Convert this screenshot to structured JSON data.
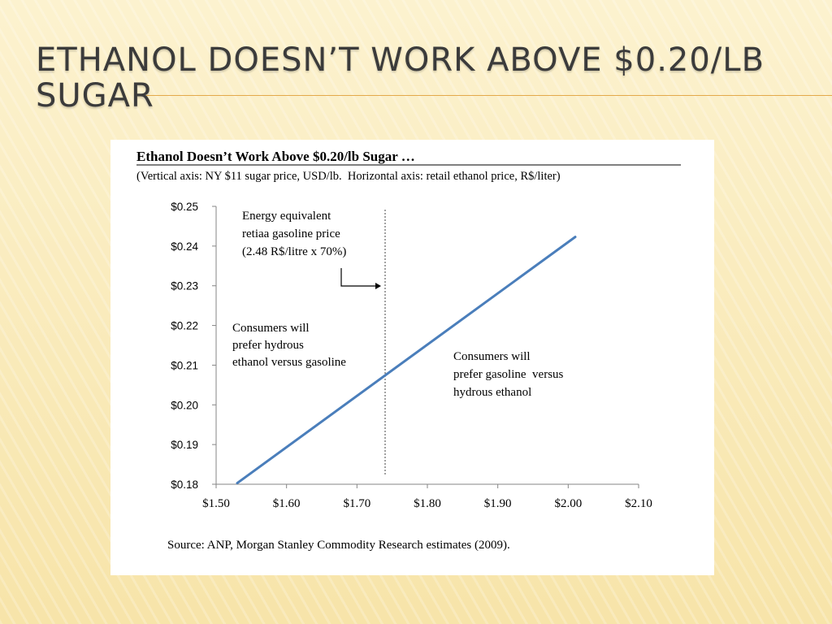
{
  "slide": {
    "title": "Ethanol doesn’t work above $0.20/lb sugar"
  },
  "chart_data": {
    "type": "line",
    "title": "Ethanol Doesn’t Work Above $0.20/lb Sugar …",
    "subtitle": "(Vertical axis: NY $11 sugar price, USD/lb.  Horizontal axis: retail ethanol price, R$/liter)",
    "xlim": [
      1.5,
      2.1
    ],
    "ylim": [
      0.18,
      0.25
    ],
    "x_ticks": [
      1.5,
      1.6,
      1.7,
      1.8,
      1.9,
      2.0,
      2.1
    ],
    "x_tick_labels": [
      "$1.50",
      "$1.60",
      "$1.70",
      "$1.80",
      "$1.90",
      "$2.00",
      "$2.10"
    ],
    "y_ticks": [
      0.18,
      0.19,
      0.2,
      0.21,
      0.22,
      0.23,
      0.24,
      0.25
    ],
    "y_tick_labels": [
      "$0.18",
      "$0.19",
      "$0.20",
      "$0.21",
      "$0.22",
      "$0.23",
      "$0.24",
      "$0.25"
    ],
    "grid": false,
    "series": [
      {
        "color": "#4a7ebb",
        "points": [
          {
            "x": 1.53,
            "y": 0.1803
          },
          {
            "x": 2.01,
            "y": 0.2423
          }
        ]
      }
    ],
    "reference_line": {
      "x": 1.74,
      "style": "dotted vertical"
    },
    "annotations": {
      "energy_equivalent": [
        "Energy equivalent",
        "retiaa gasoline price",
        "(2.48 R$/litre x 70%)"
      ],
      "prefer_ethanol": [
        "Consumers will",
        "prefer hydrous",
        "ethanol versus gasoline"
      ],
      "prefer_gasoline": [
        "Consumers will",
        "prefer gasoline  versus",
        "hydrous ethanol"
      ]
    },
    "source": "Source: ANP, Morgan Stanley Commodity Research estimates (2009)."
  }
}
